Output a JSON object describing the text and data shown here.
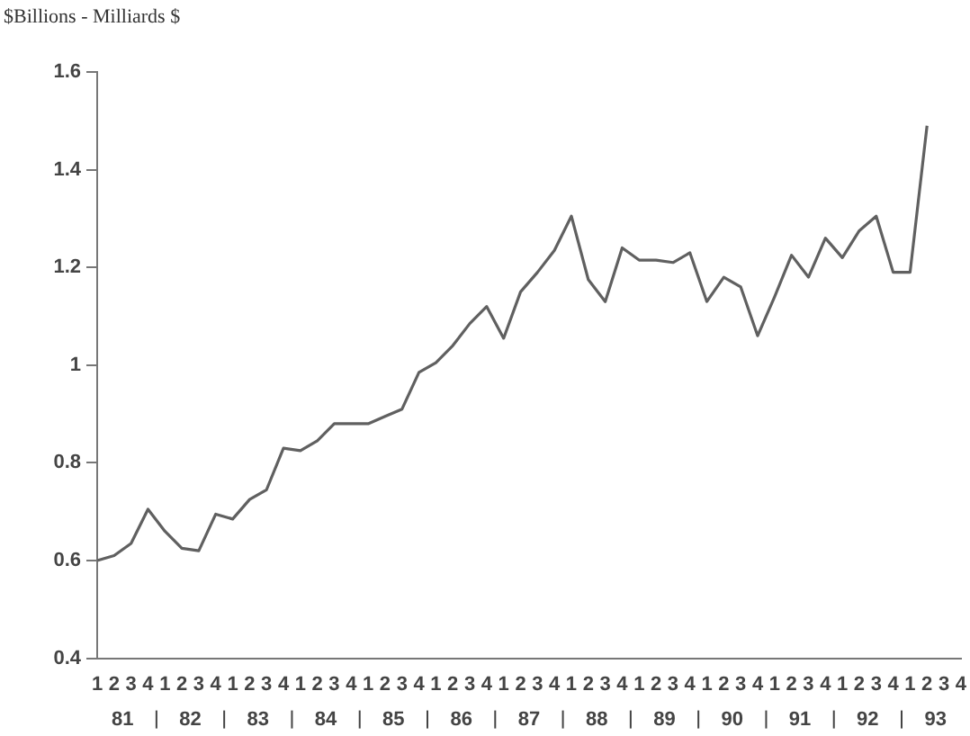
{
  "chart_data": {
    "type": "line",
    "ylabel": "$Billions - Milliards $",
    "categories": [
      "1",
      "2",
      "3",
      "4",
      "1",
      "2",
      "3",
      "4",
      "1",
      "2",
      "3",
      "4",
      "1",
      "2",
      "3",
      "4",
      "1",
      "2",
      "3",
      "4",
      "1",
      "2",
      "3",
      "4",
      "1",
      "2",
      "3",
      "4",
      "1",
      "2",
      "3",
      "4",
      "1",
      "2",
      "3",
      "4",
      "1",
      "2",
      "3",
      "4",
      "1",
      "2",
      "3",
      "4",
      "1",
      "2",
      "3",
      "4",
      "1",
      "2",
      "3",
      "4"
    ],
    "series": [
      {
        "color": "#606060",
        "values": [
          0.6,
          0.61,
          0.635,
          0.705,
          0.66,
          0.625,
          0.62,
          0.695,
          0.685,
          0.725,
          0.745,
          0.83,
          0.825,
          0.845,
          0.88,
          0.88,
          0.88,
          0.895,
          0.91,
          0.985,
          1.005,
          1.04,
          1.085,
          1.12,
          1.055,
          1.15,
          1.19,
          1.235,
          1.305,
          1.175,
          1.13,
          1.24,
          1.215,
          1.215,
          1.21,
          1.23,
          1.13,
          1.18,
          1.16,
          1.06,
          1.14,
          1.225,
          1.18,
          1.26,
          1.22,
          1.275,
          1.305,
          1.19,
          1.19,
          1.49,
          null,
          null
        ]
      }
    ],
    "annotations": [
      "81",
      "82",
      "83",
      "84",
      "85",
      "86",
      "87",
      "88",
      "89",
      "90",
      "91",
      "92",
      "93"
    ],
    "ylim": [
      0.4,
      1.6
    ],
    "yticks": [
      0.4,
      0.6,
      0.8,
      1,
      1.2,
      1.4,
      1.6
    ],
    "grid": false,
    "legend": false,
    "marker": "none",
    "line_style": "solid"
  }
}
